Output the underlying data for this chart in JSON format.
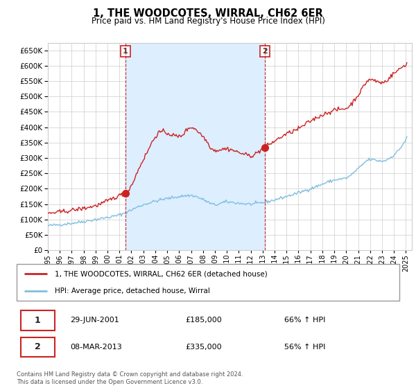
{
  "title": "1, THE WOODCOTES, WIRRAL, CH62 6ER",
  "subtitle": "Price paid vs. HM Land Registry's House Price Index (HPI)",
  "ylim": [
    0,
    675000
  ],
  "yticks": [
    0,
    50000,
    100000,
    150000,
    200000,
    250000,
    300000,
    350000,
    400000,
    450000,
    500000,
    550000,
    600000,
    650000
  ],
  "hpi_color": "#7fbfdf",
  "price_color": "#cc2222",
  "vline_color": "#cc2222",
  "shade_color": "#ddeeff",
  "grid_color": "#cccccc",
  "background_color": "#ffffff",
  "legend_label_red": "1, THE WOODCOTES, WIRRAL, CH62 6ER (detached house)",
  "legend_label_blue": "HPI: Average price, detached house, Wirral",
  "sale1_date": "29-JUN-2001",
  "sale1_price": 185000,
  "sale1_hpi": "66% ↑ HPI",
  "sale2_date": "08-MAR-2013",
  "sale2_price": 335000,
  "sale2_hpi": "56% ↑ HPI",
  "footer": "Contains HM Land Registry data © Crown copyright and database right 2024.\nThis data is licensed under the Open Government Licence v3.0.",
  "sale1_x": 2001.5,
  "sale2_x": 2013.2,
  "xmin": 1995,
  "xmax": 2025.5,
  "xticks": [
    1995,
    1996,
    1997,
    1998,
    1999,
    2000,
    2001,
    2002,
    2003,
    2004,
    2005,
    2006,
    2007,
    2008,
    2009,
    2010,
    2011,
    2012,
    2013,
    2014,
    2015,
    2016,
    2017,
    2018,
    2019,
    2020,
    2021,
    2022,
    2023,
    2024,
    2025
  ]
}
